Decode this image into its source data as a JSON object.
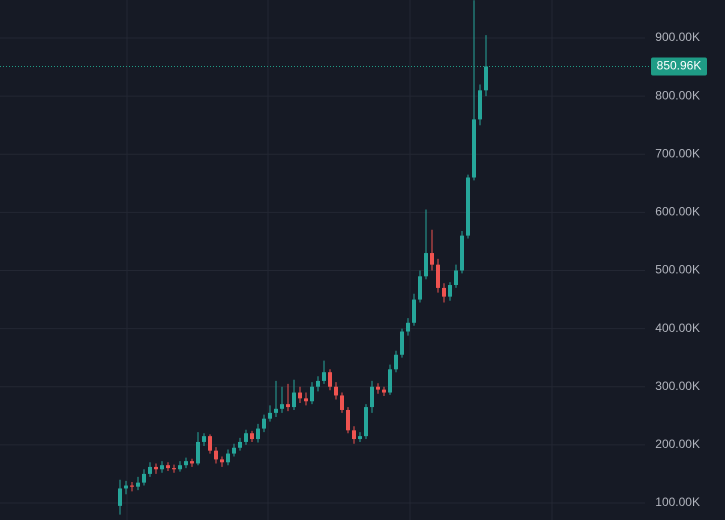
{
  "chart_data": {
    "type": "candlestick",
    "up_color": "#26a69a",
    "down_color": "#ef5350",
    "open": [
      95,
      125,
      130,
      128,
      135,
      150,
      162,
      158,
      165,
      160,
      158,
      165,
      172,
      168,
      205,
      215,
      190,
      175,
      170,
      185,
      195,
      205,
      220,
      210,
      228,
      245,
      255,
      262,
      270,
      265,
      290,
      280,
      275,
      300,
      310,
      325,
      300,
      285,
      260,
      225,
      210,
      215,
      265,
      300,
      295,
      290,
      330,
      355,
      395,
      410,
      450,
      490,
      530,
      510,
      470,
      455,
      475,
      500,
      560,
      660,
      760,
      810
    ],
    "high": [
      140,
      138,
      136,
      145,
      158,
      170,
      168,
      172,
      170,
      166,
      172,
      178,
      176,
      222,
      220,
      218,
      196,
      180,
      192,
      202,
      212,
      226,
      224,
      236,
      252,
      268,
      310,
      300,
      305,
      312,
      300,
      290,
      308,
      318,
      345,
      330,
      308,
      290,
      265,
      232,
      222,
      270,
      310,
      306,
      300,
      338,
      362,
      400,
      418,
      460,
      500,
      605,
      570,
      520,
      478,
      480,
      510,
      568,
      665,
      965,
      820,
      905
    ],
    "low": [
      80,
      115,
      120,
      122,
      130,
      145,
      150,
      152,
      155,
      152,
      154,
      160,
      162,
      165,
      198,
      185,
      168,
      162,
      165,
      180,
      190,
      200,
      205,
      204,
      222,
      240,
      248,
      255,
      258,
      260,
      272,
      268,
      270,
      292,
      305,
      294,
      278,
      255,
      220,
      202,
      205,
      210,
      255,
      288,
      284,
      286,
      325,
      350,
      388,
      405,
      445,
      485,
      500,
      462,
      445,
      448,
      470,
      495,
      555,
      655,
      750,
      800
    ],
    "close": [
      125,
      130,
      128,
      135,
      150,
      162,
      158,
      165,
      160,
      158,
      165,
      172,
      168,
      205,
      215,
      190,
      175,
      170,
      185,
      195,
      205,
      220,
      210,
      228,
      245,
      255,
      262,
      270,
      265,
      290,
      280,
      275,
      300,
      310,
      325,
      300,
      285,
      260,
      225,
      210,
      215,
      265,
      300,
      295,
      290,
      330,
      355,
      395,
      410,
      450,
      490,
      530,
      510,
      470,
      455,
      475,
      500,
      560,
      660,
      760,
      810,
      851
    ],
    "ylim": [
      70.7,
      965.4
    ],
    "yticks": [
      {
        "value": 100,
        "label": "100.00K"
      },
      {
        "value": 200,
        "label": "200.00K"
      },
      {
        "value": 300,
        "label": "300.00K"
      },
      {
        "value": 400,
        "label": "400.00K"
      },
      {
        "value": 500,
        "label": "500.00K"
      },
      {
        "value": 600,
        "label": "600.00K"
      },
      {
        "value": 700,
        "label": "700.00K"
      },
      {
        "value": 800,
        "label": "800.00K"
      },
      {
        "value": 900,
        "label": "900.00K"
      }
    ],
    "last_price": {
      "value": 850.96,
      "label": "850.96K",
      "color": "#1f9c86"
    },
    "grid": true
  }
}
